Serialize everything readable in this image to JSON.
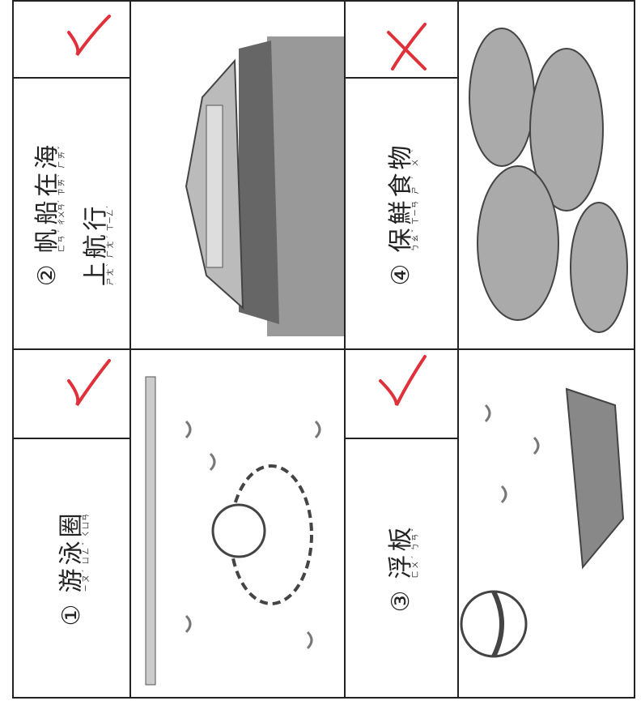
{
  "items": [
    {
      "number": "①",
      "lines": [
        [
          {
            "char": "游",
            "zhuyin": "ㄧㄡˊ"
          },
          {
            "char": "泳",
            "zhuyin": "ㄩㄥˇ"
          },
          {
            "char": "圈",
            "zhuyin": "ㄑㄩㄢ"
          }
        ]
      ]
    },
    {
      "number": "②",
      "lines": [
        [
          {
            "char": "帆",
            "zhuyin": "ㄈㄢˊ"
          },
          {
            "char": "船",
            "zhuyin": "ㄔㄨㄢˊ"
          },
          {
            "char": "在",
            "zhuyin": "ㄗㄞˋ"
          },
          {
            "char": "海",
            "zhuyin": "ㄏㄞˇ"
          }
        ],
        [
          {
            "char": "上",
            "zhuyin": "ㄕㄤˋ"
          },
          {
            "char": "航",
            "zhuyin": "ㄏㄤˊ"
          },
          {
            "char": "行",
            "zhuyin": "ㄒㄧㄥˊ"
          }
        ]
      ]
    },
    {
      "number": "③",
      "lines": [
        [
          {
            "char": "浮",
            "zhuyin": "ㄈㄨˊ"
          },
          {
            "char": "板",
            "zhuyin": "ㄅㄢˇ"
          }
        ]
      ]
    },
    {
      "number": "④",
      "lines": [
        [
          {
            "char": "保",
            "zhuyin": "ㄅㄠˇ"
          },
          {
            "char": "鮮",
            "zhuyin": "ㄒㄧㄢ"
          },
          {
            "char": "食",
            "zhuyin": "ㄕˊ"
          },
          {
            "char": "物",
            "zhuyin": "ㄨˋ"
          }
        ]
      ]
    }
  ]
}
